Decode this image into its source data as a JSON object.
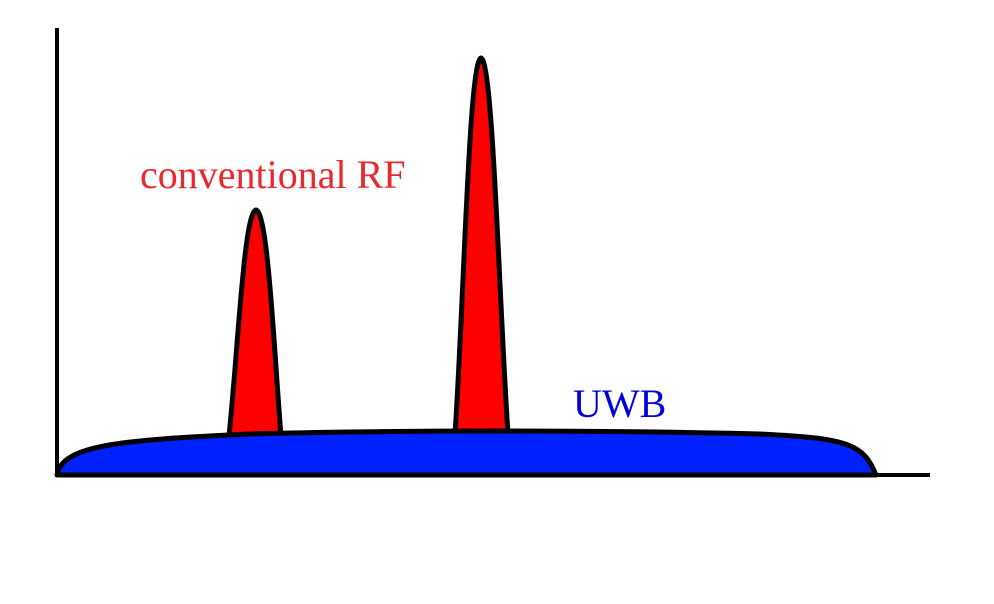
{
  "labels": {
    "conventional": "conventional RF",
    "uwb": "UWB"
  }
}
